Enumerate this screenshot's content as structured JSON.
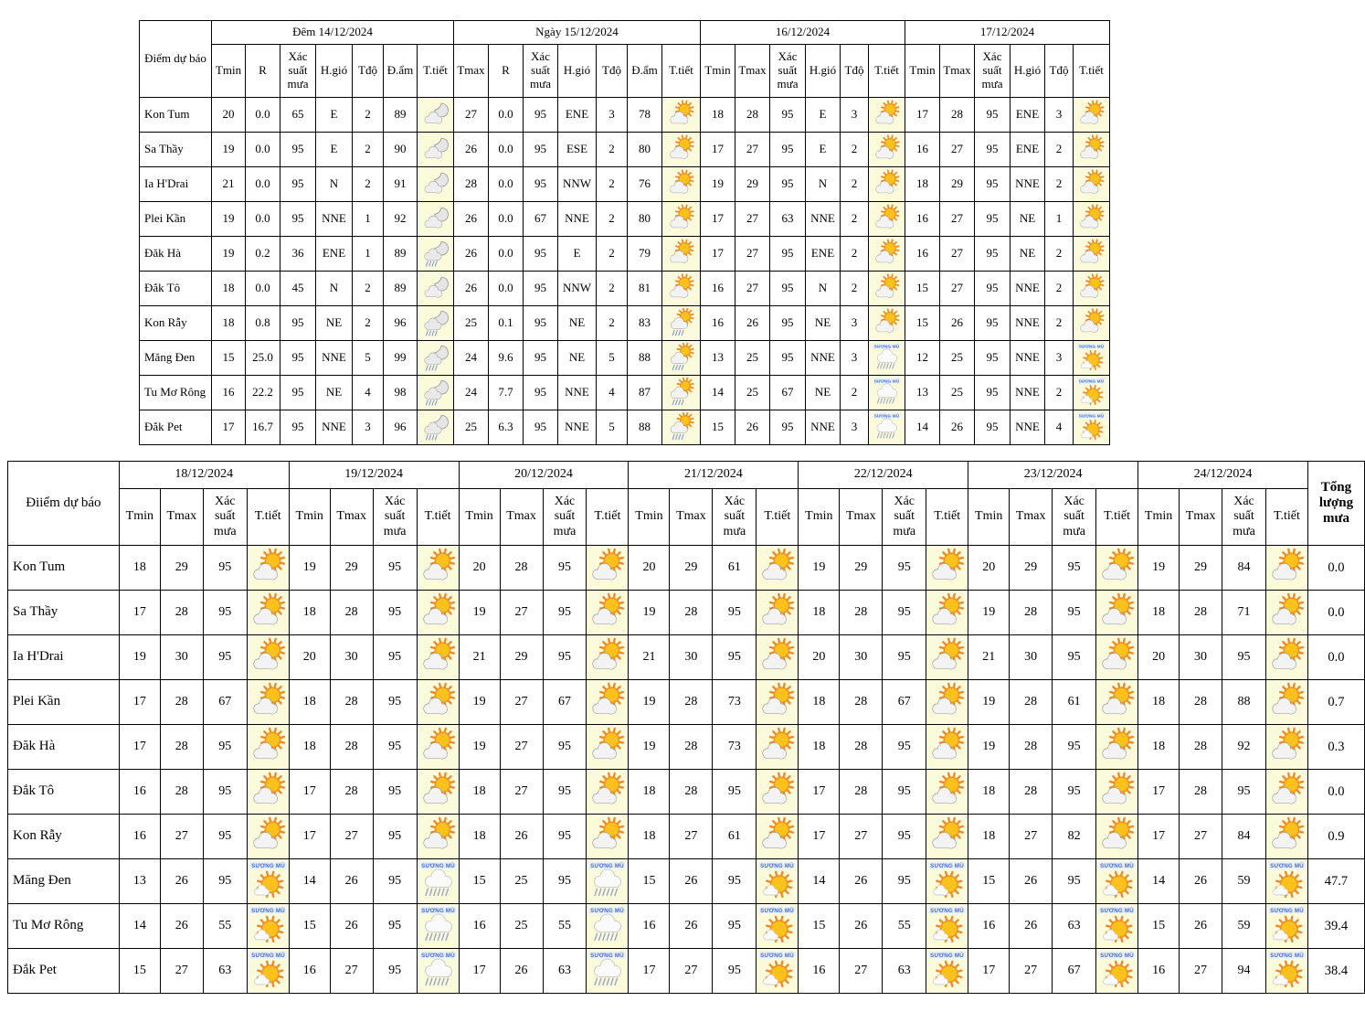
{
  "colors": {
    "border": "#000000",
    "weather_cell_bg": "#fbfbdc",
    "fog_label_color": "#4169d8",
    "sun_color": "#fcc21b",
    "sun_ray_color": "#ef8622",
    "rain_color": "#7b96d8"
  },
  "table1": {
    "corner_label": "Điểm dự báo",
    "groups": [
      {
        "label": "Đêm 14/12/2024",
        "columns": [
          "Tmin",
          "R",
          "Xác suất mưa",
          "H.gió",
          "Tđộ",
          "Đ.ẩm",
          "T.tiết"
        ]
      },
      {
        "label": "Ngày 15/12/2024",
        "columns": [
          "Tmax",
          "R",
          "Xác suất mưa",
          "H.gió",
          "Tđộ",
          "Đ.ẩm",
          "T.tiết"
        ]
      },
      {
        "label": "16/12/2024",
        "columns": [
          "Tmin",
          "Tmax",
          "Xác suất mưa",
          "H.gió",
          "Tđộ",
          "T.tiết"
        ]
      },
      {
        "label": "17/12/2024",
        "columns": [
          "Tmin",
          "Tmax",
          "Xác suất mưa",
          "H.gió",
          "Tđộ",
          "T.tiết"
        ]
      }
    ],
    "rows": [
      {
        "name": "Kon Tum",
        "cells": [
          [
            "20",
            "0.0",
            "65",
            "E",
            "2",
            "89",
            "icon:night-cloud"
          ],
          [
            "27",
            "0.0",
            "95",
            "ENE",
            "3",
            "78",
            "icon:sun-cloud"
          ],
          [
            "18",
            "28",
            "95",
            "E",
            "3",
            "icon:sun-cloud"
          ],
          [
            "17",
            "28",
            "95",
            "ENE",
            "3",
            "icon:sun-cloud"
          ]
        ]
      },
      {
        "name": "Sa Thầy",
        "cells": [
          [
            "19",
            "0.0",
            "95",
            "E",
            "2",
            "90",
            "icon:night-cloud"
          ],
          [
            "26",
            "0.0",
            "95",
            "ESE",
            "2",
            "80",
            "icon:sun-cloud"
          ],
          [
            "17",
            "27",
            "95",
            "E",
            "2",
            "icon:sun-cloud"
          ],
          [
            "16",
            "27",
            "95",
            "ENE",
            "2",
            "icon:sun-cloud"
          ]
        ]
      },
      {
        "name": "Ia H'Drai",
        "cells": [
          [
            "21",
            "0.0",
            "95",
            "N",
            "2",
            "91",
            "icon:night-cloud"
          ],
          [
            "28",
            "0.0",
            "95",
            "NNW",
            "2",
            "76",
            "icon:sun-cloud"
          ],
          [
            "19",
            "29",
            "95",
            "N",
            "2",
            "icon:sun-cloud"
          ],
          [
            "18",
            "29",
            "95",
            "NNE",
            "2",
            "icon:sun-cloud"
          ]
        ]
      },
      {
        "name": "Plei Kần",
        "cells": [
          [
            "19",
            "0.0",
            "95",
            "NNE",
            "1",
            "92",
            "icon:night-cloud"
          ],
          [
            "26",
            "0.0",
            "67",
            "NNE",
            "2",
            "80",
            "icon:sun-cloud"
          ],
          [
            "17",
            "27",
            "63",
            "NNE",
            "2",
            "icon:sun-cloud"
          ],
          [
            "16",
            "27",
            "95",
            "NE",
            "1",
            "icon:sun-cloud"
          ]
        ]
      },
      {
        "name": "Đăk Hà",
        "cells": [
          [
            "19",
            "0.2",
            "36",
            "ENE",
            "1",
            "89",
            "icon:night-rain"
          ],
          [
            "26",
            "0.0",
            "95",
            "E",
            "2",
            "79",
            "icon:sun-cloud"
          ],
          [
            "17",
            "27",
            "95",
            "ENE",
            "2",
            "icon:sun-cloud"
          ],
          [
            "16",
            "27",
            "95",
            "NE",
            "2",
            "icon:sun-cloud"
          ]
        ]
      },
      {
        "name": "Đắk Tô",
        "cells": [
          [
            "18",
            "0.0",
            "45",
            "N",
            "2",
            "89",
            "icon:night-cloud"
          ],
          [
            "26",
            "0.0",
            "95",
            "NNW",
            "2",
            "81",
            "icon:sun-cloud"
          ],
          [
            "16",
            "27",
            "95",
            "N",
            "2",
            "icon:sun-cloud"
          ],
          [
            "15",
            "27",
            "95",
            "NNE",
            "2",
            "icon:sun-cloud"
          ]
        ]
      },
      {
        "name": "Kon Rẫy",
        "cells": [
          [
            "18",
            "0.8",
            "95",
            "NE",
            "2",
            "96",
            "icon:night-rain"
          ],
          [
            "25",
            "0.1",
            "95",
            "NE",
            "2",
            "83",
            "icon:sun-rain"
          ],
          [
            "16",
            "26",
            "95",
            "NE",
            "3",
            "icon:sun-cloud"
          ],
          [
            "15",
            "26",
            "95",
            "NNE",
            "2",
            "icon:sun-cloud"
          ]
        ]
      },
      {
        "name": "Măng Đen",
        "cells": [
          [
            "15",
            "25.0",
            "95",
            "NNE",
            "5",
            "99",
            "icon:night-rain"
          ],
          [
            "24",
            "9.6",
            "95",
            "NE",
            "5",
            "88",
            "icon:sun-rain"
          ],
          [
            "13",
            "25",
            "95",
            "NNE",
            "3",
            "icon:fog-rain"
          ],
          [
            "12",
            "25",
            "95",
            "NNE",
            "3",
            "icon:fog-sun"
          ]
        ]
      },
      {
        "name": "Tu Mơ Rông",
        "cells": [
          [
            "16",
            "22.2",
            "95",
            "NE",
            "4",
            "98",
            "icon:night-rain"
          ],
          [
            "24",
            "7.7",
            "95",
            "NNE",
            "4",
            "87",
            "icon:sun-rain"
          ],
          [
            "14",
            "25",
            "67",
            "NE",
            "2",
            "icon:fog-rain"
          ],
          [
            "13",
            "25",
            "95",
            "NNE",
            "2",
            "icon:fog-sun"
          ]
        ]
      },
      {
        "name": "Đắk Pet",
        "cells": [
          [
            "17",
            "16.7",
            "95",
            "NNE",
            "3",
            "96",
            "icon:night-rain"
          ],
          [
            "25",
            "6.3",
            "95",
            "NNE",
            "5",
            "88",
            "icon:sun-rain"
          ],
          [
            "15",
            "26",
            "95",
            "NNE",
            "3",
            "icon:fog-rain"
          ],
          [
            "14",
            "26",
            "95",
            "NNE",
            "4",
            "icon:fog-sun"
          ]
        ]
      }
    ]
  },
  "table2": {
    "corner_label": "Điiểm dự báo",
    "total_label": "Tổng lượng mưa",
    "day_columns": [
      "Tmin",
      "Tmax",
      "Xác suất mưa",
      "T.tiết"
    ],
    "dates": [
      "18/12/2024",
      "19/12/2024",
      "20/12/2024",
      "21/12/2024",
      "22/12/2024",
      "23/12/2024",
      "24/12/2024"
    ],
    "rows": [
      {
        "name": "Kon Tum",
        "days": [
          [
            "18",
            "29",
            "95",
            "icon:sun-cloud"
          ],
          [
            "19",
            "29",
            "95",
            "icon:sun-cloud"
          ],
          [
            "20",
            "28",
            "95",
            "icon:sun-cloud"
          ],
          [
            "20",
            "29",
            "61",
            "icon:sun-cloud"
          ],
          [
            "19",
            "29",
            "95",
            "icon:sun-cloud"
          ],
          [
            "20",
            "29",
            "95",
            "icon:sun-cloud"
          ],
          [
            "19",
            "29",
            "84",
            "icon:sun-cloud"
          ]
        ],
        "total": "0.0"
      },
      {
        "name": "Sa Thầy",
        "days": [
          [
            "17",
            "28",
            "95",
            "icon:sun-cloud"
          ],
          [
            "18",
            "28",
            "95",
            "icon:sun-cloud"
          ],
          [
            "19",
            "27",
            "95",
            "icon:sun-cloud"
          ],
          [
            "19",
            "28",
            "95",
            "icon:sun-cloud"
          ],
          [
            "18",
            "28",
            "95",
            "icon:sun-cloud"
          ],
          [
            "19",
            "28",
            "95",
            "icon:sun-cloud"
          ],
          [
            "18",
            "28",
            "71",
            "icon:sun-cloud"
          ]
        ],
        "total": "0.0"
      },
      {
        "name": "Ia H'Drai",
        "days": [
          [
            "19",
            "30",
            "95",
            "icon:sun-cloud"
          ],
          [
            "20",
            "30",
            "95",
            "icon:sun-cloud"
          ],
          [
            "21",
            "29",
            "95",
            "icon:sun-cloud"
          ],
          [
            "21",
            "30",
            "95",
            "icon:sun-cloud"
          ],
          [
            "20",
            "30",
            "95",
            "icon:sun-cloud"
          ],
          [
            "21",
            "30",
            "95",
            "icon:sun-cloud"
          ],
          [
            "20",
            "30",
            "95",
            "icon:sun-cloud"
          ]
        ],
        "total": "0.0"
      },
      {
        "name": "Plei Kần",
        "days": [
          [
            "17",
            "28",
            "67",
            "icon:sun-cloud"
          ],
          [
            "18",
            "28",
            "95",
            "icon:sun-cloud"
          ],
          [
            "19",
            "27",
            "67",
            "icon:sun-cloud"
          ],
          [
            "19",
            "28",
            "73",
            "icon:sun-cloud"
          ],
          [
            "18",
            "28",
            "67",
            "icon:sun-cloud"
          ],
          [
            "19",
            "28",
            "61",
            "icon:sun-cloud"
          ],
          [
            "18",
            "28",
            "88",
            "icon:sun-cloud"
          ]
        ],
        "total": "0.7"
      },
      {
        "name": "Đăk Hà",
        "days": [
          [
            "17",
            "28",
            "95",
            "icon:sun-cloud"
          ],
          [
            "18",
            "28",
            "95",
            "icon:sun-cloud"
          ],
          [
            "19",
            "27",
            "95",
            "icon:sun-cloud"
          ],
          [
            "19",
            "28",
            "73",
            "icon:sun-cloud"
          ],
          [
            "18",
            "28",
            "95",
            "icon:sun-cloud"
          ],
          [
            "19",
            "28",
            "95",
            "icon:sun-cloud"
          ],
          [
            "18",
            "28",
            "92",
            "icon:sun-cloud"
          ]
        ],
        "total": "0.3"
      },
      {
        "name": "Đắk Tô",
        "days": [
          [
            "16",
            "28",
            "95",
            "icon:sun-cloud"
          ],
          [
            "17",
            "28",
            "95",
            "icon:sun-cloud"
          ],
          [
            "18",
            "27",
            "95",
            "icon:sun-cloud"
          ],
          [
            "18",
            "28",
            "95",
            "icon:sun-cloud"
          ],
          [
            "17",
            "28",
            "95",
            "icon:sun-cloud"
          ],
          [
            "18",
            "28",
            "95",
            "icon:sun-cloud"
          ],
          [
            "17",
            "28",
            "95",
            "icon:sun-cloud"
          ]
        ],
        "total": "0.0"
      },
      {
        "name": "Kon Rẫy",
        "days": [
          [
            "16",
            "27",
            "95",
            "icon:sun-cloud"
          ],
          [
            "17",
            "27",
            "95",
            "icon:sun-cloud"
          ],
          [
            "18",
            "26",
            "95",
            "icon:sun-cloud"
          ],
          [
            "18",
            "27",
            "61",
            "icon:sun-cloud"
          ],
          [
            "17",
            "27",
            "95",
            "icon:sun-cloud"
          ],
          [
            "18",
            "27",
            "82",
            "icon:sun-cloud"
          ],
          [
            "17",
            "27",
            "84",
            "icon:sun-cloud"
          ]
        ],
        "total": "0.9"
      },
      {
        "name": "Măng Đen",
        "days": [
          [
            "13",
            "26",
            "95",
            "icon:fog-sun"
          ],
          [
            "14",
            "26",
            "95",
            "icon:fog-rain"
          ],
          [
            "15",
            "25",
            "95",
            "icon:fog-rain"
          ],
          [
            "15",
            "26",
            "95",
            "icon:fog-sun"
          ],
          [
            "14",
            "26",
            "95",
            "icon:fog-sun"
          ],
          [
            "15",
            "26",
            "95",
            "icon:fog-sun"
          ],
          [
            "14",
            "26",
            "59",
            "icon:fog-sun"
          ]
        ],
        "total": "47.7"
      },
      {
        "name": "Tu Mơ Rông",
        "days": [
          [
            "14",
            "26",
            "55",
            "icon:fog-sun"
          ],
          [
            "15",
            "26",
            "95",
            "icon:fog-rain"
          ],
          [
            "16",
            "25",
            "55",
            "icon:fog-rain"
          ],
          [
            "16",
            "26",
            "95",
            "icon:fog-sun"
          ],
          [
            "15",
            "26",
            "55",
            "icon:fog-sun"
          ],
          [
            "16",
            "26",
            "63",
            "icon:fog-sun"
          ],
          [
            "15",
            "26",
            "59",
            "icon:fog-sun"
          ]
        ],
        "total": "39.4"
      },
      {
        "name": "Đắk Pet",
        "days": [
          [
            "15",
            "27",
            "63",
            "icon:fog-sun"
          ],
          [
            "16",
            "27",
            "95",
            "icon:fog-rain"
          ],
          [
            "17",
            "26",
            "63",
            "icon:fog-rain"
          ],
          [
            "17",
            "27",
            "95",
            "icon:fog-sun"
          ],
          [
            "16",
            "27",
            "63",
            "icon:fog-sun"
          ],
          [
            "17",
            "27",
            "67",
            "icon:fog-sun"
          ],
          [
            "16",
            "27",
            "94",
            "icon:fog-sun"
          ]
        ],
        "total": "38.4"
      }
    ]
  },
  "icon_fog_label": "SƯƠNG MÙ"
}
